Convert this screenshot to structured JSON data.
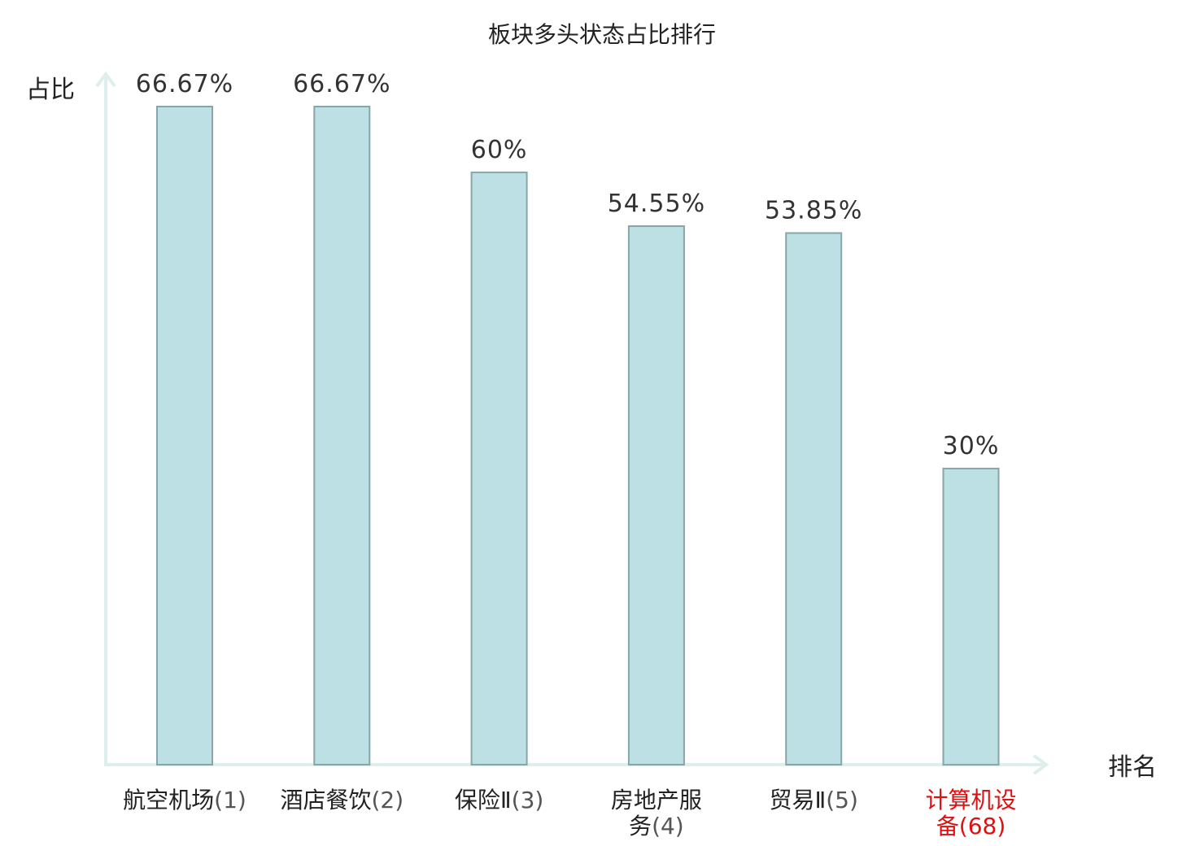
{
  "chart_data": {
    "type": "bar",
    "title": "板块多头状态占比排行",
    "ylabel": "占比",
    "xlabel": "排名",
    "grid": false,
    "legend": false,
    "categories": [
      {
        "name_lines": [
          "航空机场"
        ],
        "rank": "(1)",
        "highlight": false
      },
      {
        "name_lines": [
          "酒店餐饮"
        ],
        "rank": "(2)",
        "highlight": false
      },
      {
        "name_lines": [
          "保险Ⅱ"
        ],
        "rank": "(3)",
        "highlight": false
      },
      {
        "name_lines": [
          "房地产服",
          "务"
        ],
        "rank": "(4)",
        "highlight": false
      },
      {
        "name_lines": [
          "贸易Ⅱ"
        ],
        "rank": "(5)",
        "highlight": false
      },
      {
        "name_lines": [
          "计算机设",
          "备"
        ],
        "rank": "(68)",
        "highlight": true
      }
    ],
    "values": [
      66.67,
      66.67,
      60,
      54.55,
      53.85,
      30
    ],
    "value_labels": [
      "66.67%",
      "66.67%",
      "60%",
      "54.55%",
      "53.85%",
      "30%"
    ],
    "colors": {
      "bar_fill": "#bce0e3",
      "bar_stroke": "#86a6a8",
      "axis": "#dcefec",
      "highlight_text": "#e01010",
      "text": "#222222"
    }
  }
}
